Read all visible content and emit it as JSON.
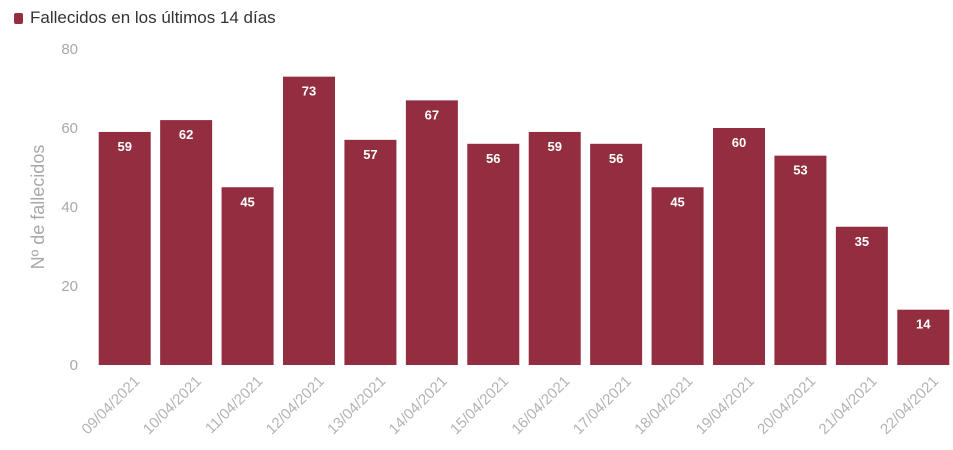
{
  "chart_data": {
    "type": "bar",
    "title": "",
    "legend": {
      "label": "Fallecidos en los últimos 14 días",
      "position": "top-left"
    },
    "xlabel": "",
    "ylabel": "Nº de fallecidos",
    "ylim": [
      0,
      80
    ],
    "yticks": [
      "0",
      "20",
      "40",
      "60",
      "80"
    ],
    "grid": false,
    "color": "#922e3f",
    "categories": [
      "09/04/2021",
      "10/04/2021",
      "11/04/2021",
      "12/04/2021",
      "13/04/2021",
      "14/04/2021",
      "15/04/2021",
      "16/04/2021",
      "17/04/2021",
      "18/04/2021",
      "19/04/2021",
      "20/04/2021",
      "21/04/2021",
      "22/04/2021"
    ],
    "values": [
      59,
      62,
      45,
      73,
      57,
      67,
      56,
      59,
      56,
      45,
      60,
      53,
      35,
      14
    ]
  }
}
